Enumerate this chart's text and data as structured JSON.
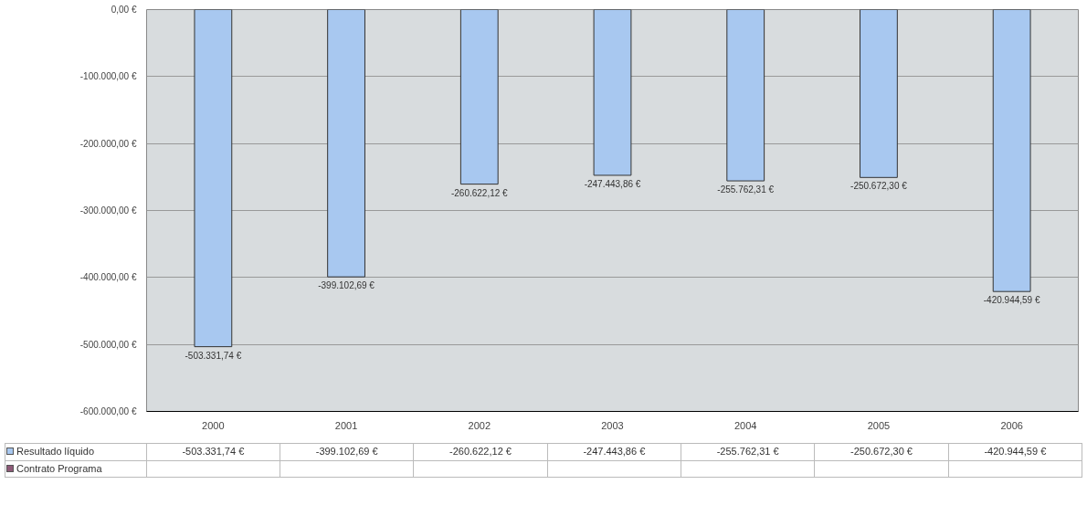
{
  "chart_data": {
    "type": "bar",
    "categories": [
      "2000",
      "2001",
      "2002",
      "2003",
      "2004",
      "2005",
      "2006"
    ],
    "series": [
      {
        "name": "Resultado líquido",
        "color": "#a8c8f0",
        "values": [
          -503331.74,
          -399102.69,
          -260622.12,
          -247443.86,
          -255762.31,
          -250672.3,
          -420944.59
        ],
        "value_labels": [
          "-503.331,74 €",
          "-399.102,69 €",
          "-260.622,12 €",
          "-247.443,86 €",
          "-255.762,31 €",
          "-250.672,30 €",
          "-420.944,59 €"
        ]
      },
      {
        "name": "Contrato Programa",
        "color": "#8e5a78",
        "values": [
          null,
          null,
          null,
          null,
          null,
          null,
          null
        ]
      }
    ],
    "ylim": [
      -600000,
      0
    ],
    "yticks": [
      {
        "value": 0,
        "label": "0,00 €"
      },
      {
        "value": -100000,
        "label": "-100.000,00 €"
      },
      {
        "value": -200000,
        "label": "-200.000,00 €"
      },
      {
        "value": -300000,
        "label": "-300.000,00 €"
      },
      {
        "value": -400000,
        "label": "-400.000,00 €"
      },
      {
        "value": -500000,
        "label": "-500.000,00 €"
      },
      {
        "value": -600000,
        "label": "-600.000,00 €"
      }
    ],
    "grid": "y",
    "legend": "bottom"
  }
}
